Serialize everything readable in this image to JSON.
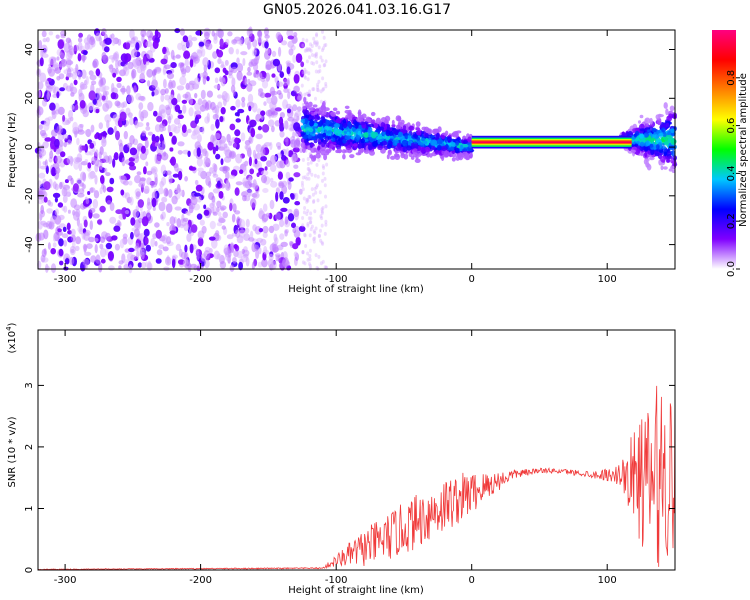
{
  "figure_title": "GN05.2026.041.03.16.G17",
  "chart_data": [
    {
      "type": "heatmap",
      "title": "GN05.2026.041.03.16.G17",
      "xlabel": "Height of straight line (km)",
      "ylabel": "Frequency (Hz)",
      "xlim": [
        -320,
        150
      ],
      "ylim": [
        -50,
        48
      ],
      "xticks": [
        -300,
        -200,
        -100,
        0,
        100
      ],
      "yticks": [
        -40,
        -20,
        0,
        20,
        40
      ],
      "colorbar": {
        "label": "Normalized spectral amplitude",
        "range": [
          0.0,
          1.0
        ],
        "ticks": [
          0.0,
          0.2,
          0.4,
          0.6,
          0.8
        ],
        "tick_labels": [
          "0.0",
          "0.2",
          "0.4",
          "0.6",
          "0.8"
        ],
        "colormap": [
          "#ffffff",
          "#8000ff",
          "#0000ff",
          "#00c8ff",
          "#00ff00",
          "#ffff00",
          "#ff8000",
          "#ff0000",
          "#ff0080"
        ]
      },
      "regions": [
        {
          "name": "noise",
          "x_range": [
            -320,
            -125
          ],
          "freq_range": [
            -50,
            48
          ],
          "amplitude": 0.1
        },
        {
          "name": "transition",
          "x_range": [
            -125,
            0
          ],
          "center_freq_start": 8,
          "center_freq_end": 0,
          "amplitude": 0.3
        },
        {
          "name": "signal-line",
          "x_range": [
            0,
            110
          ],
          "center_freq": 2,
          "amplitude": 0.95
        },
        {
          "name": "end-spread",
          "x_range": [
            110,
            150
          ],
          "center_freq": 3,
          "amplitude": 0.35
        }
      ]
    },
    {
      "type": "line",
      "xlabel": "Height of straight line (km)",
      "ylabel": "SNR (10 * v/v)",
      "yscale_label": "(x10",
      "yscale_exp": "4",
      "xlim": [
        -320,
        150
      ],
      "ylim": [
        0,
        3.9
      ],
      "xticks": [
        -300,
        -200,
        -100,
        0,
        100
      ],
      "yticks": [
        0,
        1,
        2,
        3
      ],
      "color": "#f03a3a",
      "envelope_x": [
        -320,
        -110,
        -100,
        -80,
        -60,
        -40,
        -20,
        -5,
        10,
        30,
        50,
        70,
        90,
        100,
        110,
        120,
        130,
        140,
        150
      ],
      "envelope_y": [
        0.01,
        0.03,
        0.15,
        0.35,
        0.55,
        0.8,
        1.05,
        1.2,
        1.35,
        1.55,
        1.62,
        1.6,
        1.55,
        1.55,
        1.55,
        1.5,
        1.4,
        1.6,
        1.6
      ],
      "noise_amplitude": [
        0.005,
        0.01,
        0.1,
        0.3,
        0.4,
        0.45,
        0.45,
        0.4,
        0.25,
        0.08,
        0.04,
        0.04,
        0.06,
        0.1,
        0.2,
        0.8,
        1.3,
        1.6,
        1.4
      ],
      "sample_step_km": 0.5
    }
  ]
}
